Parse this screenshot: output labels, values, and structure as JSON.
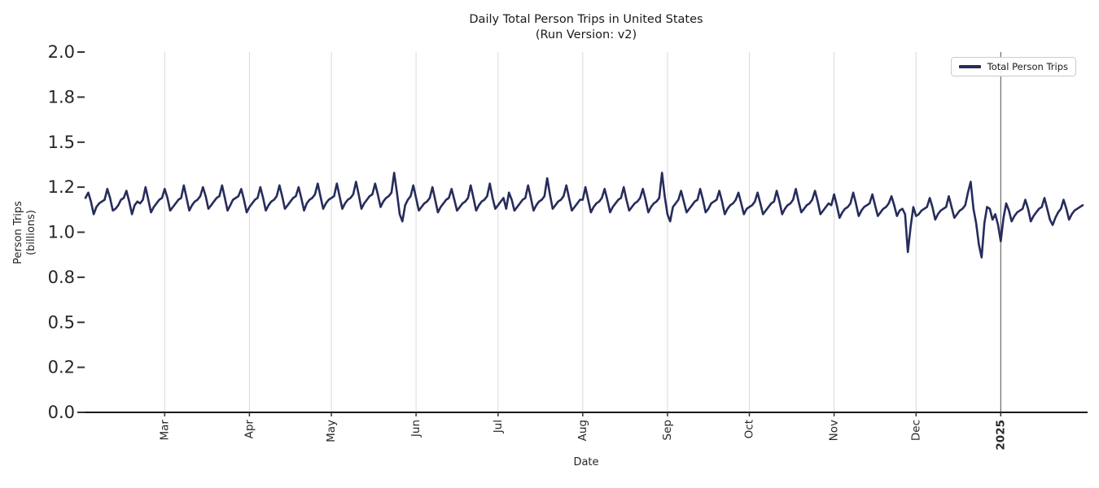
{
  "chart_data": {
    "type": "line",
    "title": "Daily Total Person Trips in United States",
    "subtitle": "(Run Version: v2)",
    "xlabel": "Date",
    "ylabel_lines": [
      "Person Trips",
      "(billions)"
    ],
    "legend": {
      "label": "Total Person Trips",
      "location": "upper-right"
    },
    "ylim": [
      0.0,
      2.0
    ],
    "grid": {
      "vertical": true,
      "horizontal": false
    },
    "yticks": [
      {
        "value": 0.0,
        "label": "0.0"
      },
      {
        "value": 0.25,
        "label": "0.2"
      },
      {
        "value": 0.5,
        "label": "0.5"
      },
      {
        "value": 0.75,
        "label": "0.8"
      },
      {
        "value": 1.0,
        "label": "1.0"
      },
      {
        "value": 1.25,
        "label": "1.2"
      },
      {
        "value": 1.5,
        "label": "1.5"
      },
      {
        "value": 1.75,
        "label": "1.8"
      },
      {
        "value": 2.0,
        "label": "2.0"
      }
    ],
    "xticks": [
      {
        "day": 29,
        "label": "Mar",
        "bold": false
      },
      {
        "day": 60,
        "label": "Apr",
        "bold": false
      },
      {
        "day": 90,
        "label": "May",
        "bold": false
      },
      {
        "day": 121,
        "label": "Jun",
        "bold": false
      },
      {
        "day": 151,
        "label": "Jul",
        "bold": false
      },
      {
        "day": 182,
        "label": "Aug",
        "bold": false
      },
      {
        "day": 213,
        "label": "Sep",
        "bold": false
      },
      {
        "day": 243,
        "label": "Oct",
        "bold": false
      },
      {
        "day": 274,
        "label": "Nov",
        "bold": false
      },
      {
        "day": 304,
        "label": "Dec",
        "bold": false
      },
      {
        "day": 335,
        "label": "2025",
        "bold": true
      }
    ],
    "x_axis": {
      "unit": "day-index",
      "num_points": 366
    },
    "colors": {
      "line": "#262c5b",
      "grid": "#d9d9d9",
      "year_line": "#4d4d4d",
      "axis": "#1a1a1a",
      "tick": "#333333",
      "text": "#262626"
    },
    "series": [
      {
        "name": "Total Person Trips",
        "unit": "billions",
        "values": [
          1.19,
          1.22,
          1.17,
          1.1,
          1.14,
          1.16,
          1.17,
          1.18,
          1.24,
          1.19,
          1.12,
          1.13,
          1.15,
          1.18,
          1.19,
          1.23,
          1.17,
          1.1,
          1.15,
          1.17,
          1.16,
          1.18,
          1.25,
          1.18,
          1.11,
          1.14,
          1.16,
          1.18,
          1.19,
          1.24,
          1.19,
          1.12,
          1.14,
          1.16,
          1.18,
          1.19,
          1.26,
          1.19,
          1.12,
          1.15,
          1.17,
          1.18,
          1.2,
          1.25,
          1.2,
          1.13,
          1.15,
          1.17,
          1.19,
          1.2,
          1.26,
          1.19,
          1.12,
          1.15,
          1.18,
          1.19,
          1.2,
          1.24,
          1.18,
          1.11,
          1.14,
          1.16,
          1.18,
          1.19,
          1.25,
          1.19,
          1.12,
          1.15,
          1.17,
          1.18,
          1.2,
          1.26,
          1.2,
          1.13,
          1.15,
          1.17,
          1.19,
          1.2,
          1.25,
          1.19,
          1.12,
          1.16,
          1.18,
          1.19,
          1.21,
          1.27,
          1.2,
          1.13,
          1.16,
          1.18,
          1.19,
          1.2,
          1.27,
          1.2,
          1.13,
          1.16,
          1.18,
          1.19,
          1.21,
          1.28,
          1.21,
          1.13,
          1.16,
          1.18,
          1.2,
          1.21,
          1.27,
          1.21,
          1.14,
          1.17,
          1.19,
          1.2,
          1.22,
          1.33,
          1.22,
          1.1,
          1.06,
          1.15,
          1.18,
          1.2,
          1.26,
          1.19,
          1.12,
          1.14,
          1.16,
          1.17,
          1.19,
          1.25,
          1.18,
          1.11,
          1.14,
          1.16,
          1.18,
          1.19,
          1.24,
          1.18,
          1.12,
          1.14,
          1.16,
          1.17,
          1.19,
          1.26,
          1.19,
          1.12,
          1.15,
          1.17,
          1.18,
          1.2,
          1.27,
          1.19,
          1.13,
          1.15,
          1.17,
          1.19,
          1.13,
          1.22,
          1.18,
          1.12,
          1.14,
          1.16,
          1.18,
          1.19,
          1.26,
          1.19,
          1.12,
          1.15,
          1.17,
          1.18,
          1.2,
          1.3,
          1.21,
          1.13,
          1.15,
          1.17,
          1.18,
          1.2,
          1.26,
          1.19,
          1.12,
          1.14,
          1.16,
          1.18,
          1.18,
          1.25,
          1.18,
          1.11,
          1.14,
          1.16,
          1.17,
          1.19,
          1.24,
          1.18,
          1.11,
          1.14,
          1.16,
          1.18,
          1.19,
          1.25,
          1.18,
          1.12,
          1.14,
          1.16,
          1.17,
          1.19,
          1.24,
          1.18,
          1.11,
          1.14,
          1.16,
          1.17,
          1.19,
          1.33,
          1.2,
          1.1,
          1.06,
          1.14,
          1.16,
          1.18,
          1.23,
          1.17,
          1.11,
          1.13,
          1.15,
          1.17,
          1.18,
          1.24,
          1.18,
          1.11,
          1.13,
          1.16,
          1.17,
          1.18,
          1.23,
          1.17,
          1.1,
          1.13,
          1.15,
          1.16,
          1.18,
          1.22,
          1.16,
          1.1,
          1.13,
          1.14,
          1.15,
          1.17,
          1.22,
          1.16,
          1.1,
          1.12,
          1.14,
          1.16,
          1.17,
          1.23,
          1.17,
          1.1,
          1.13,
          1.15,
          1.16,
          1.18,
          1.24,
          1.17,
          1.11,
          1.13,
          1.15,
          1.16,
          1.18,
          1.23,
          1.17,
          1.1,
          1.12,
          1.14,
          1.16,
          1.15,
          1.21,
          1.15,
          1.08,
          1.11,
          1.13,
          1.14,
          1.16,
          1.22,
          1.16,
          1.09,
          1.12,
          1.14,
          1.15,
          1.16,
          1.21,
          1.15,
          1.09,
          1.11,
          1.13,
          1.14,
          1.16,
          1.2,
          1.15,
          1.09,
          1.12,
          1.13,
          1.1,
          0.89,
          1.03,
          1.14,
          1.09,
          1.1,
          1.12,
          1.13,
          1.14,
          1.19,
          1.14,
          1.07,
          1.1,
          1.12,
          1.13,
          1.14,
          1.2,
          1.14,
          1.08,
          1.1,
          1.12,
          1.13,
          1.15,
          1.22,
          1.28,
          1.13,
          1.05,
          0.93,
          0.86,
          1.05,
          1.14,
          1.13,
          1.07,
          1.1,
          1.04,
          0.95,
          1.08,
          1.16,
          1.12,
          1.06,
          1.09,
          1.11,
          1.12,
          1.13,
          1.18,
          1.13,
          1.06,
          1.09,
          1.11,
          1.13,
          1.14,
          1.19,
          1.13,
          1.07,
          1.04,
          1.08,
          1.11,
          1.13,
          1.18,
          1.13,
          1.07,
          1.1,
          1.12,
          1.13,
          1.14,
          1.15
        ]
      }
    ]
  }
}
